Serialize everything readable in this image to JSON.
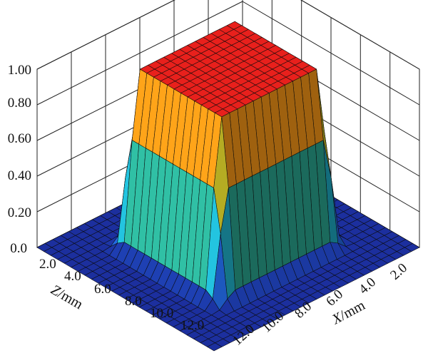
{
  "chart_data": {
    "type": "surface3d",
    "title": "",
    "z_axis": {
      "ticks": [
        "0.0",
        "0.20",
        "0.40",
        "0.60",
        "0.80",
        "1.00"
      ],
      "range": [
        0,
        1
      ]
    },
    "depth_axis": {
      "label_symbol": "Z",
      "label_unit": "/mm",
      "ticks": [
        "2.0",
        "4.0",
        "6.0",
        "8.0",
        "10.0",
        "12.0"
      ],
      "range": [
        0,
        13
      ]
    },
    "x_axis": {
      "label_symbol": "X",
      "label_unit": "/mm",
      "ticks": [
        "2.0",
        "4.0",
        "6.0",
        "8.0",
        "10.0",
        "12.0"
      ],
      "range": [
        0,
        13
      ]
    },
    "plateau": {
      "value": 1.0,
      "z_from": 3.5,
      "z_to": 9.5,
      "x_from": 3.5,
      "x_to": 9.5,
      "edge_width": 1.2,
      "outside_value": 0.0
    },
    "grid": true,
    "colormap": [
      "#1c2f9e",
      "#1f67d4",
      "#1fb0c8",
      "#3aa552",
      "#8fbf3a",
      "#f1c21b",
      "#f07d14",
      "#e8201c"
    ]
  }
}
